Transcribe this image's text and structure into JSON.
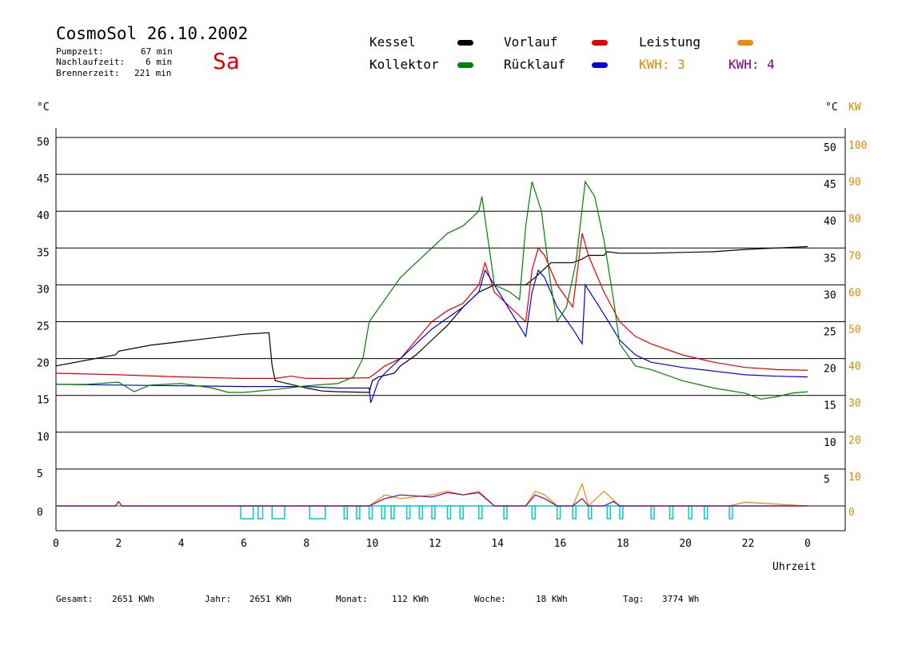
{
  "header": {
    "title": "CosmoSol 26.10.2002",
    "day": "Sa",
    "stats": [
      {
        "label": "Pumpzeit:",
        "value": "67 min"
      },
      {
        "label": "Nachlaufzeit:",
        "value": "6 min"
      },
      {
        "label": "Brennerzeit:",
        "value": "221 min"
      }
    ]
  },
  "legend": {
    "items": [
      {
        "label": "Kessel",
        "color": "#000000"
      },
      {
        "label": "Vorlauf",
        "color": "#e00000"
      },
      {
        "label": "Leistung",
        "color": "#ee8800"
      },
      {
        "label": "Kollektor",
        "color": "#008000"
      },
      {
        "label": "Rücklauf",
        "color": "#0000dd"
      }
    ],
    "kwh_orange": "KWH: 3",
    "kwh_purple": "KWH: 4",
    "kwh_orange_color": "#dd8800",
    "kwh_purple_color": "#800080"
  },
  "axes": {
    "left_unit": "°C",
    "right_unit": "°C",
    "right_unit2": "KW",
    "xlabel": "Uhrzeit"
  },
  "footer": {
    "items": [
      {
        "label": "Gesamt:",
        "value": "2651 KWh"
      },
      {
        "label": "Jahr:",
        "value": "2651 KWh"
      },
      {
        "label": "Monat:",
        "value": "112 KWh"
      },
      {
        "label": "Woche:",
        "value": "18 KWh"
      },
      {
        "label": "Tag:",
        "value": "3774 Wh"
      }
    ]
  },
  "chart_data": {
    "type": "line",
    "title": "CosmoSol 26.10.2002",
    "xlabel": "Uhrzeit",
    "ylabel": "°C",
    "ylabel_right": "KW",
    "xlim": [
      0,
      24
    ],
    "ylim": [
      0,
      50
    ],
    "ylim_right": [
      0,
      100
    ],
    "grid": true,
    "x_ticks": [
      "0",
      "2",
      "4",
      "6",
      "8",
      "10",
      "12",
      "14",
      "16",
      "18",
      "20",
      "22",
      "0"
    ],
    "y_ticks_left": [
      "0",
      "5",
      "10",
      "15",
      "20",
      "25",
      "30",
      "35",
      "40",
      "45",
      "50"
    ],
    "y_ticks_right": [
      "5",
      "10",
      "15",
      "20",
      "25",
      "30",
      "35",
      "40",
      "45",
      "50"
    ],
    "y_ticks_kw": [
      "0",
      "10",
      "20",
      "30",
      "40",
      "50",
      "60",
      "70",
      "80",
      "90",
      "100"
    ],
    "series": [
      {
        "name": "Kessel",
        "color": "#000000",
        "x": [
          0,
          1.9,
          2,
          3,
          4,
          5,
          6,
          6.8,
          6.9,
          7,
          8,
          8.5,
          9,
          10,
          10.1,
          10.3,
          10.8,
          11,
          11.5,
          12,
          12.5,
          13,
          13.5,
          14,
          15,
          15.3,
          15.8,
          16,
          16.5,
          16.8,
          17,
          17.5,
          17.6,
          18,
          19,
          20,
          21,
          22,
          23,
          24
        ],
        "y": [
          19,
          20.5,
          21,
          21.8,
          22.3,
          22.8,
          23.3,
          23.5,
          19,
          17,
          16,
          15.6,
          15.5,
          15.4,
          17,
          17.5,
          18,
          19,
          20.5,
          22.5,
          24.5,
          27,
          29,
          30,
          30,
          31,
          33,
          33,
          33,
          33.5,
          34,
          34,
          34.5,
          34.3,
          34.3,
          34.4,
          34.5,
          34.8,
          35.0,
          35.2
        ]
      },
      {
        "name": "Vorlauf",
        "color": "#e00000",
        "x": [
          0,
          2,
          4,
          6,
          7,
          7.5,
          8,
          9,
          10,
          10.2,
          10.5,
          11,
          11.5,
          12,
          12.5,
          13,
          13.5,
          13.7,
          14,
          14.5,
          15,
          15.2,
          15.4,
          15.6,
          16,
          16.5,
          16.8,
          17,
          17.5,
          18,
          18.5,
          19,
          20,
          21,
          22,
          23,
          24
        ],
        "y": [
          18,
          17.8,
          17.5,
          17.3,
          17.3,
          17.6,
          17.3,
          17.3,
          17.4,
          18,
          19,
          20,
          22.5,
          25,
          26.5,
          27.5,
          30,
          33,
          29,
          27,
          25,
          32,
          35,
          34,
          30,
          27,
          37,
          34,
          29,
          25,
          23,
          22,
          20.5,
          19.5,
          18.8,
          18.5,
          18.4
        ]
      },
      {
        "name": "Rücklauf",
        "color": "#0000dd",
        "x": [
          0,
          2,
          4,
          6,
          8,
          9,
          10,
          10.05,
          10.3,
          10.5,
          11,
          11.5,
          12,
          12.5,
          13,
          13.5,
          13.7,
          14,
          14.5,
          15,
          15.2,
          15.4,
          15.6,
          16,
          16.5,
          16.8,
          16.9,
          17.5,
          18,
          18.5,
          19,
          20,
          21,
          22,
          23,
          24
        ],
        "y": [
          16.5,
          16.4,
          16.3,
          16.2,
          16.2,
          16.0,
          16.0,
          14,
          17,
          18,
          20,
          22,
          24,
          25.5,
          27,
          29,
          32,
          30,
          26.5,
          23,
          29,
          32,
          31,
          27,
          24,
          22,
          30,
          26,
          22.5,
          20.5,
          19.5,
          18.8,
          18.3,
          17.8,
          17.6,
          17.5
        ]
      },
      {
        "name": "Kollektor",
        "color": "#008000",
        "x": [
          0,
          1,
          2,
          2.5,
          3,
          4,
          5,
          5.5,
          6,
          7,
          8,
          9,
          9.5,
          9.8,
          10,
          10.5,
          11,
          11.5,
          12,
          12.5,
          13,
          13.5,
          13.6,
          14,
          14.5,
          14.8,
          15,
          15.2,
          15.5,
          15.8,
          16,
          16.3,
          16.6,
          16.9,
          17.2,
          17.5,
          17.8,
          18,
          18.5,
          19,
          20,
          21,
          22,
          22.5,
          23,
          23.5,
          24
        ],
        "y": [
          16.5,
          16.5,
          16.8,
          15.5,
          16.4,
          16.6,
          16.0,
          15.4,
          15.4,
          15.8,
          16.3,
          16.6,
          17.5,
          20,
          25,
          28,
          31,
          33,
          35,
          37,
          38,
          40,
          42,
          30,
          29,
          28,
          38,
          44,
          40,
          30,
          25,
          27,
          33,
          44,
          42,
          36,
          28,
          22,
          19,
          18.5,
          17,
          16,
          15.3,
          14.5,
          14.8,
          15.3,
          15.5
        ]
      },
      {
        "name": "Leistung (KWH: 3)",
        "color": "#ee8800",
        "x": [
          0,
          10,
          10.5,
          11,
          12,
          12.5,
          13,
          13.5,
          14,
          15,
          15.3,
          15.6,
          16,
          16.5,
          16.8,
          17,
          17.5,
          18,
          21.5,
          22,
          24
        ],
        "y": [
          0,
          0,
          1.5,
          1,
          1.5,
          2,
          1.5,
          2,
          0,
          0,
          2,
          1.5,
          0,
          0,
          3,
          0,
          2,
          0,
          0,
          0.5,
          0
        ]
      },
      {
        "name": "KWH: 4",
        "color": "#800080",
        "x": [
          0,
          1.9,
          2,
          2.1,
          10,
          10.5,
          11,
          12,
          12.5,
          13,
          13.5,
          14,
          15,
          15.3,
          15.6,
          16,
          16.5,
          16.8,
          17,
          17.5,
          17.8,
          18,
          24
        ],
        "y": [
          0,
          0,
          0.6,
          0,
          0,
          1,
          1.5,
          1.2,
          1.8,
          1.5,
          1.8,
          0,
          0,
          1.5,
          1,
          0,
          0,
          1,
          0,
          0,
          0.6,
          0,
          0
        ]
      }
    ],
    "pump_on_intervals": [
      [
        5.9,
        6.3
      ],
      [
        6.45,
        6.6
      ],
      [
        6.9,
        7.3
      ],
      [
        8.1,
        8.6
      ],
      [
        9.2,
        9.3
      ],
      [
        9.6,
        9.7
      ],
      [
        10.0,
        10.1
      ],
      [
        10.4,
        10.5
      ],
      [
        10.7,
        10.8
      ],
      [
        11.2,
        11.3
      ],
      [
        11.6,
        11.7
      ],
      [
        12.0,
        12.1
      ],
      [
        12.5,
        12.6
      ],
      [
        12.9,
        13.0
      ],
      [
        13.5,
        13.6
      ],
      [
        14.3,
        14.4
      ],
      [
        15.2,
        15.3
      ],
      [
        16.0,
        16.1
      ],
      [
        16.5,
        16.6
      ],
      [
        17.0,
        17.1
      ],
      [
        17.6,
        17.7
      ],
      [
        18.0,
        18.1
      ],
      [
        19.0,
        19.1
      ],
      [
        19.6,
        19.7
      ],
      [
        20.2,
        20.3
      ],
      [
        20.7,
        20.8
      ],
      [
        21.5,
        21.6
      ]
    ]
  }
}
